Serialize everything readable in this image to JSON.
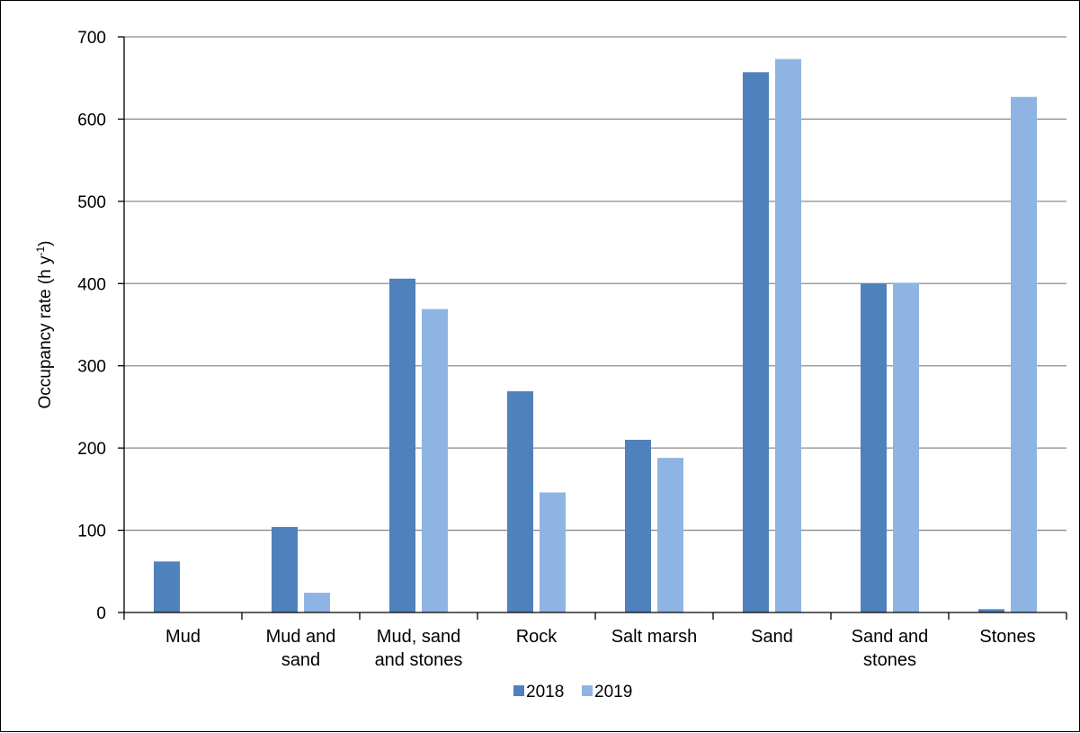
{
  "chart_data": {
    "type": "bar",
    "title": "",
    "xlabel": "",
    "ylabel": "Occupancy rate (h y-1)",
    "ylabel_parts": {
      "base": "Occupancy rate (h y",
      "superscript": "-1",
      "close": ")"
    },
    "ylim": [
      0,
      700
    ],
    "yticks": [
      0,
      100,
      200,
      300,
      400,
      500,
      600,
      700
    ],
    "grid": true,
    "legend_position": "bottom",
    "categories": [
      [
        "Mud"
      ],
      [
        "Mud and",
        "sand"
      ],
      [
        "Mud, sand",
        "and stones"
      ],
      [
        "Rock"
      ],
      [
        "Salt marsh"
      ],
      [
        "Sand"
      ],
      [
        "Sand and",
        "stones"
      ],
      [
        "Stones"
      ]
    ],
    "series": [
      {
        "name": "2018",
        "color": "#4f81bd",
        "values": [
          62,
          104,
          406,
          269,
          210,
          657,
          400,
          4
        ]
      },
      {
        "name": "2019",
        "color": "#8eb4e3",
        "values": [
          0,
          24,
          369,
          146,
          188,
          673,
          401,
          627
        ]
      }
    ]
  }
}
